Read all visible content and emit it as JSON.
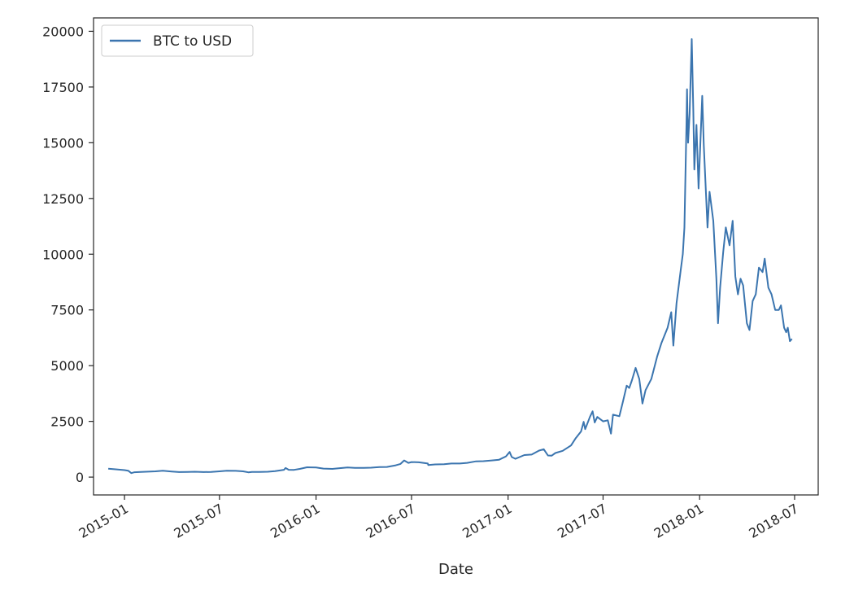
{
  "chart_data": {
    "type": "line",
    "title": "",
    "xlabel": "Date",
    "ylabel": "",
    "x_ticks": [
      "2015-01",
      "2015-07",
      "2016-01",
      "2016-07",
      "2017-01",
      "2017-07",
      "2018-01",
      "2018-07"
    ],
    "y_ticks": [
      0,
      2500,
      5000,
      7500,
      10000,
      12500,
      15000,
      17500,
      20000
    ],
    "xlim": [
      "2014-11-03",
      "2018-08-15"
    ],
    "ylim": [
      -800,
      20600
    ],
    "grid": false,
    "legend": {
      "placement": "upper-left"
    },
    "series": [
      {
        "name": "BTC to USD",
        "color": "#3b75af",
        "points": [
          [
            "2014-12-01",
            380
          ],
          [
            "2014-12-15",
            350
          ],
          [
            "2015-01-01",
            315
          ],
          [
            "2015-01-08",
            290
          ],
          [
            "2015-01-14",
            180
          ],
          [
            "2015-01-20",
            220
          ],
          [
            "2015-02-01",
            230
          ],
          [
            "2015-02-15",
            245
          ],
          [
            "2015-03-01",
            260
          ],
          [
            "2015-03-15",
            285
          ],
          [
            "2015-04-01",
            250
          ],
          [
            "2015-04-15",
            225
          ],
          [
            "2015-05-01",
            235
          ],
          [
            "2015-05-15",
            240
          ],
          [
            "2015-06-01",
            225
          ],
          [
            "2015-06-15",
            235
          ],
          [
            "2015-07-01",
            260
          ],
          [
            "2015-07-15",
            285
          ],
          [
            "2015-08-01",
            280
          ],
          [
            "2015-08-15",
            260
          ],
          [
            "2015-08-25",
            215
          ],
          [
            "2015-09-01",
            230
          ],
          [
            "2015-09-15",
            232
          ],
          [
            "2015-10-01",
            240
          ],
          [
            "2015-10-15",
            265
          ],
          [
            "2015-11-01",
            330
          ],
          [
            "2015-11-04",
            410
          ],
          [
            "2015-11-10",
            330
          ],
          [
            "2015-11-20",
            325
          ],
          [
            "2015-12-01",
            370
          ],
          [
            "2015-12-15",
            440
          ],
          [
            "2016-01-01",
            430
          ],
          [
            "2016-01-15",
            385
          ],
          [
            "2016-02-01",
            370
          ],
          [
            "2016-02-15",
            400
          ],
          [
            "2016-03-01",
            430
          ],
          [
            "2016-03-15",
            415
          ],
          [
            "2016-04-01",
            415
          ],
          [
            "2016-04-15",
            425
          ],
          [
            "2016-05-01",
            450
          ],
          [
            "2016-05-15",
            455
          ],
          [
            "2016-06-01",
            530
          ],
          [
            "2016-06-10",
            590
          ],
          [
            "2016-06-17",
            750
          ],
          [
            "2016-06-25",
            640
          ],
          [
            "2016-07-01",
            675
          ],
          [
            "2016-07-15",
            665
          ],
          [
            "2016-08-01",
            610
          ],
          [
            "2016-08-02",
            540
          ],
          [
            "2016-08-15",
            570
          ],
          [
            "2016-09-01",
            575
          ],
          [
            "2016-09-15",
            610
          ],
          [
            "2016-10-01",
            610
          ],
          [
            "2016-10-15",
            640
          ],
          [
            "2016-11-01",
            710
          ],
          [
            "2016-11-15",
            715
          ],
          [
            "2016-12-01",
            750
          ],
          [
            "2016-12-15",
            780
          ],
          [
            "2016-12-28",
            930
          ],
          [
            "2017-01-04",
            1130
          ],
          [
            "2017-01-08",
            900
          ],
          [
            "2017-01-15",
            820
          ],
          [
            "2017-02-01",
            990
          ],
          [
            "2017-02-15",
            1010
          ],
          [
            "2017-03-01",
            1190
          ],
          [
            "2017-03-10",
            1250
          ],
          [
            "2017-03-18",
            970
          ],
          [
            "2017-03-25",
            960
          ],
          [
            "2017-04-01",
            1080
          ],
          [
            "2017-04-15",
            1180
          ],
          [
            "2017-05-01",
            1420
          ],
          [
            "2017-05-10",
            1750
          ],
          [
            "2017-05-20",
            2050
          ],
          [
            "2017-05-25",
            2480
          ],
          [
            "2017-05-28",
            2150
          ],
          [
            "2017-06-06",
            2700
          ],
          [
            "2017-06-11",
            2950
          ],
          [
            "2017-06-15",
            2450
          ],
          [
            "2017-06-20",
            2700
          ],
          [
            "2017-07-01",
            2500
          ],
          [
            "2017-07-10",
            2550
          ],
          [
            "2017-07-16",
            1950
          ],
          [
            "2017-07-20",
            2800
          ],
          [
            "2017-08-01",
            2730
          ],
          [
            "2017-08-08",
            3400
          ],
          [
            "2017-08-15",
            4100
          ],
          [
            "2017-08-20",
            4000
          ],
          [
            "2017-08-25",
            4350
          ],
          [
            "2017-09-01",
            4900
          ],
          [
            "2017-09-08",
            4400
          ],
          [
            "2017-09-14",
            3300
          ],
          [
            "2017-09-20",
            3900
          ],
          [
            "2017-10-01",
            4400
          ],
          [
            "2017-10-12",
            5400
          ],
          [
            "2017-10-20",
            6000
          ],
          [
            "2017-11-01",
            6700
          ],
          [
            "2017-11-08",
            7400
          ],
          [
            "2017-11-12",
            5900
          ],
          [
            "2017-11-18",
            7800
          ],
          [
            "2017-11-26",
            9300
          ],
          [
            "2017-11-30",
            10000
          ],
          [
            "2017-12-03",
            11200
          ],
          [
            "2017-12-07",
            16000
          ],
          [
            "2017-12-08",
            17400
          ],
          [
            "2017-12-10",
            15000
          ],
          [
            "2017-12-13",
            16300
          ],
          [
            "2017-12-17",
            19650
          ],
          [
            "2017-12-20",
            16500
          ],
          [
            "2017-12-22",
            13800
          ],
          [
            "2017-12-26",
            15800
          ],
          [
            "2017-12-30",
            12950
          ],
          [
            "2018-01-06",
            17100
          ],
          [
            "2018-01-09",
            14900
          ],
          [
            "2018-01-16",
            11200
          ],
          [
            "2018-01-20",
            12800
          ],
          [
            "2018-01-27",
            11500
          ],
          [
            "2018-02-02",
            8900
          ],
          [
            "2018-02-05",
            6900
          ],
          [
            "2018-02-09",
            8500
          ],
          [
            "2018-02-15",
            10100
          ],
          [
            "2018-02-20",
            11200
          ],
          [
            "2018-02-27",
            10400
          ],
          [
            "2018-03-05",
            11500
          ],
          [
            "2018-03-10",
            9000
          ],
          [
            "2018-03-15",
            8200
          ],
          [
            "2018-03-20",
            8900
          ],
          [
            "2018-03-25",
            8600
          ],
          [
            "2018-04-01",
            6900
          ],
          [
            "2018-04-06",
            6600
          ],
          [
            "2018-04-12",
            7900
          ],
          [
            "2018-04-18",
            8200
          ],
          [
            "2018-04-24",
            9400
          ],
          [
            "2018-05-01",
            9200
          ],
          [
            "2018-05-05",
            9800
          ],
          [
            "2018-05-12",
            8500
          ],
          [
            "2018-05-18",
            8200
          ],
          [
            "2018-05-25",
            7500
          ],
          [
            "2018-06-01",
            7500
          ],
          [
            "2018-06-05",
            7700
          ],
          [
            "2018-06-11",
            6700
          ],
          [
            "2018-06-15",
            6500
          ],
          [
            "2018-06-18",
            6700
          ],
          [
            "2018-06-22",
            6100
          ],
          [
            "2018-06-26",
            6200
          ]
        ]
      }
    ]
  }
}
